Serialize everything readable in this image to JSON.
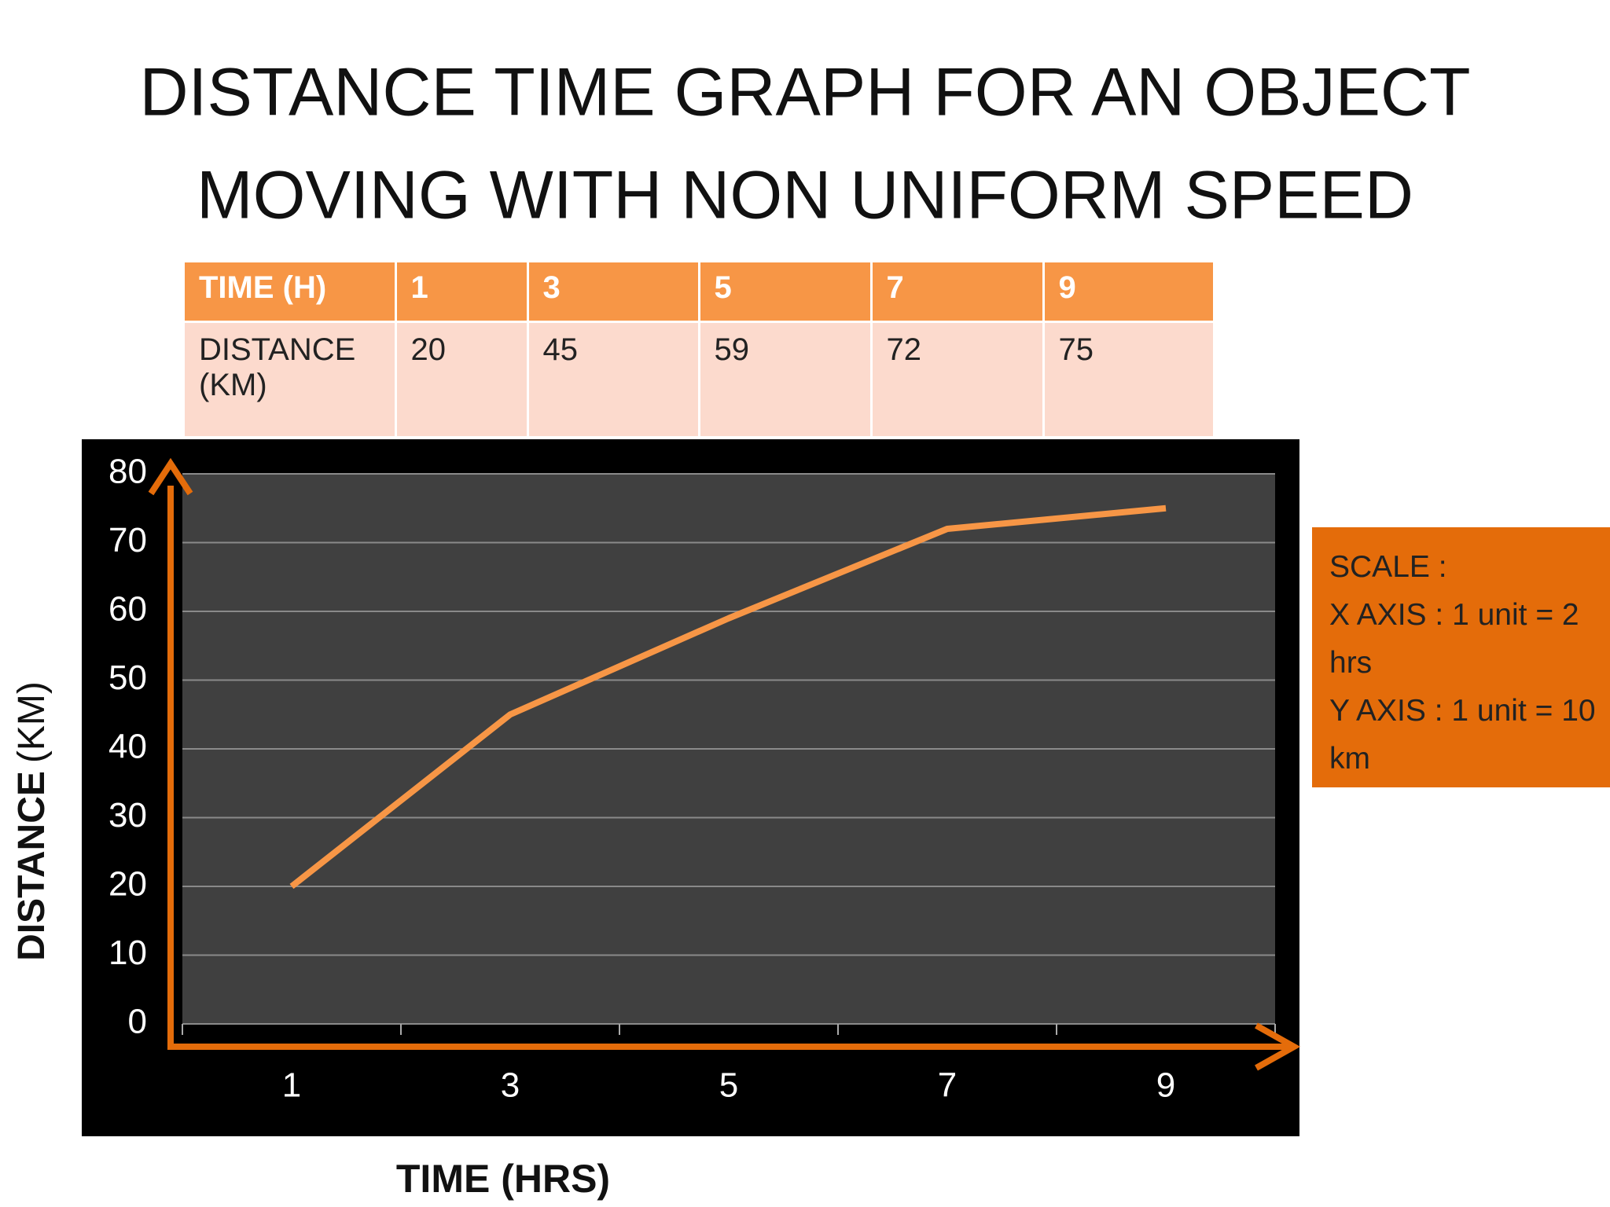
{
  "title": [
    "DISTANCE TIME GRAPH FOR AN OBJECT",
    "MOVING WITH NON UNIFORM SPEED"
  ],
  "table": {
    "header": [
      "TIME (H)",
      "1",
      "3",
      "5",
      "7",
      "9"
    ],
    "rows": [
      [
        "DISTANCE (KM)",
        "20",
        "45",
        "59",
        "72",
        "75"
      ]
    ]
  },
  "scale_note": [
    "SCALE :",
    "X AXIS : 1 unit = 2 hrs",
    "Y AXIS : 1 unit = 10 km"
  ],
  "chart_data": {
    "type": "line",
    "categories": [
      "1",
      "3",
      "5",
      "7",
      "9"
    ],
    "values": [
      20,
      45,
      59,
      72,
      75
    ],
    "color": "#f79646",
    "ylim": [
      0,
      80
    ],
    "yticks": [
      0,
      10,
      20,
      30,
      40,
      50,
      60,
      70,
      80
    ],
    "grid": true,
    "x_label": "TIME (HRS)",
    "y_label": [
      "DISTANCE",
      "(KM)"
    ]
  }
}
